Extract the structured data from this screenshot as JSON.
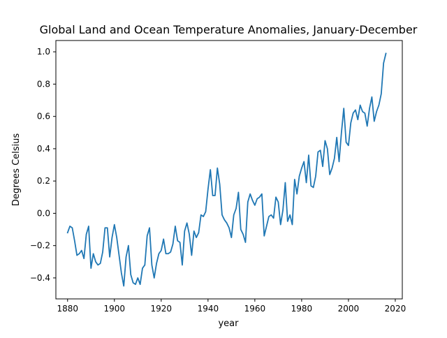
{
  "chart_data": {
    "type": "line",
    "title": "Global Land and Ocean Temperature Anomalies, January-December",
    "xlabel": "year",
    "ylabel": "Degrees Celsius",
    "xlim": [
      1875,
      2023
    ],
    "ylim": [
      -0.53,
      1.07
    ],
    "xticks": [
      1880,
      1900,
      1920,
      1940,
      1960,
      1980,
      2000,
      2020
    ],
    "xtick_labels": [
      "1880",
      "1900",
      "1920",
      "1940",
      "1960",
      "1980",
      "2000",
      "2020"
    ],
    "yticks": [
      -0.4,
      -0.2,
      0.0,
      0.2,
      0.4,
      0.6,
      0.8,
      1.0
    ],
    "ytick_labels": [
      "−0.4",
      "−0.2",
      "0.0",
      "0.2",
      "0.4",
      "0.6",
      "0.8",
      "1.0"
    ],
    "grid": false,
    "series": [
      {
        "color": "#1f77b4",
        "x": [
          1880,
          1881,
          1882,
          1883,
          1884,
          1885,
          1886,
          1887,
          1888,
          1889,
          1890,
          1891,
          1892,
          1893,
          1894,
          1895,
          1896,
          1897,
          1898,
          1899,
          1900,
          1901,
          1902,
          1903,
          1904,
          1905,
          1906,
          1907,
          1908,
          1909,
          1910,
          1911,
          1912,
          1913,
          1914,
          1915,
          1916,
          1917,
          1918,
          1919,
          1920,
          1921,
          1922,
          1923,
          1924,
          1925,
          1926,
          1927,
          1928,
          1929,
          1930,
          1931,
          1932,
          1933,
          1934,
          1935,
          1936,
          1937,
          1938,
          1939,
          1940,
          1941,
          1942,
          1943,
          1944,
          1945,
          1946,
          1947,
          1948,
          1949,
          1950,
          1951,
          1952,
          1953,
          1954,
          1955,
          1956,
          1957,
          1958,
          1959,
          1960,
          1961,
          1962,
          1963,
          1964,
          1965,
          1966,
          1967,
          1968,
          1969,
          1970,
          1971,
          1972,
          1973,
          1974,
          1975,
          1976,
          1977,
          1978,
          1979,
          1980,
          1981,
          1982,
          1983,
          1984,
          1985,
          1986,
          1987,
          1988,
          1989,
          1990,
          1991,
          1992,
          1993,
          1994,
          1995,
          1996,
          1997,
          1998,
          1999,
          2000,
          2001,
          2002,
          2003,
          2004,
          2005,
          2006,
          2007,
          2008,
          2009,
          2010,
          2011,
          2012,
          2013,
          2014,
          2015,
          2016
        ],
        "values": [
          -0.12,
          -0.08,
          -0.09,
          -0.17,
          -0.26,
          -0.25,
          -0.23,
          -0.28,
          -0.13,
          -0.08,
          -0.34,
          -0.25,
          -0.3,
          -0.32,
          -0.31,
          -0.24,
          -0.09,
          -0.09,
          -0.27,
          -0.15,
          -0.07,
          -0.15,
          -0.26,
          -0.37,
          -0.45,
          -0.27,
          -0.2,
          -0.38,
          -0.43,
          -0.44,
          -0.4,
          -0.44,
          -0.34,
          -0.32,
          -0.14,
          -0.09,
          -0.32,
          -0.4,
          -0.31,
          -0.25,
          -0.23,
          -0.16,
          -0.25,
          -0.25,
          -0.24,
          -0.19,
          -0.08,
          -0.17,
          -0.18,
          -0.32,
          -0.11,
          -0.06,
          -0.13,
          -0.26,
          -0.11,
          -0.15,
          -0.12,
          -0.01,
          -0.02,
          0.01,
          0.15,
          0.27,
          0.11,
          0.11,
          0.28,
          0.18,
          -0.01,
          -0.04,
          -0.06,
          -0.09,
          -0.15,
          -0.01,
          0.03,
          0.13,
          -0.1,
          -0.13,
          -0.18,
          0.07,
          0.12,
          0.08,
          0.05,
          0.09,
          0.1,
          0.12,
          -0.14,
          -0.08,
          -0.02,
          -0.01,
          -0.03,
          0.1,
          0.07,
          -0.07,
          0.02,
          0.19,
          -0.05,
          -0.01,
          -0.07,
          0.21,
          0.12,
          0.23,
          0.28,
          0.32,
          0.19,
          0.36,
          0.17,
          0.16,
          0.23,
          0.38,
          0.39,
          0.29,
          0.45,
          0.4,
          0.24,
          0.28,
          0.34,
          0.47,
          0.32,
          0.5,
          0.65,
          0.44,
          0.42,
          0.56,
          0.62,
          0.64,
          0.58,
          0.67,
          0.63,
          0.62,
          0.54,
          0.65,
          0.72,
          0.57,
          0.63,
          0.67,
          0.74,
          0.93,
          0.99
        ]
      }
    ]
  }
}
